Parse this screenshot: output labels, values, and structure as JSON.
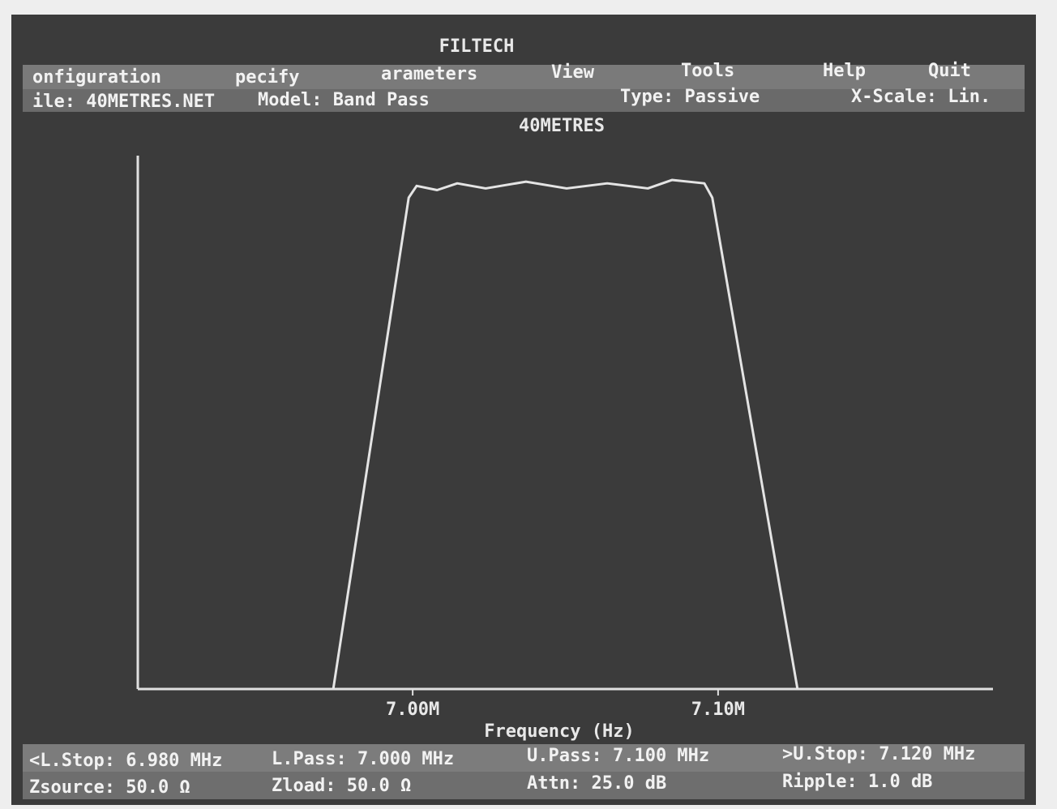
{
  "window": {
    "title": "FILTECH",
    "menu": [
      "onfiguration",
      "pecify",
      "arameters",
      "View",
      "Tools",
      "Help",
      "Quit"
    ],
    "info": [
      "ile: 40METRES.NET",
      "Model: Band Pass",
      "Type: Passive",
      "X-Scale: Lin."
    ]
  },
  "chart_data": {
    "type": "line",
    "title": "40METRES",
    "x_label": "Frequency (Hz)",
    "xlim": [
      6910000,
      7190000
    ],
    "ylim": [
      -60,
      3
    ],
    "xticks": [
      {
        "value": 7000000,
        "label": "7.00M"
      },
      {
        "value": 7100000,
        "label": "7.10M"
      }
    ],
    "x": [
      6974000,
      6998700,
      7001300,
      7008000,
      7014600,
      7023900,
      7037100,
      7050400,
      7063700,
      7077000,
      7084900,
      7095500,
      7098100,
      7126000
    ],
    "series": [
      {
        "color": "#e4e4e4",
        "values": [
          -60,
          -1.7,
          -0.3,
          -0.8,
          0,
          -0.6,
          0.2,
          -0.6,
          0,
          -0.6,
          0.4,
          0,
          -1.7,
          -60
        ]
      }
    ]
  },
  "status": [
    [
      "<L.Stop: 6.980 MHz",
      "L.Pass: 7.000 MHz",
      "U.Pass: 7.100 MHz",
      ">U.Stop: 7.120 MHz"
    ],
    [
      "Zsource: 50.0 Ω",
      "Zload: 50.0 Ω",
      "Attn: 25.0 dB",
      "Ripple: 1.0 dB"
    ]
  ]
}
